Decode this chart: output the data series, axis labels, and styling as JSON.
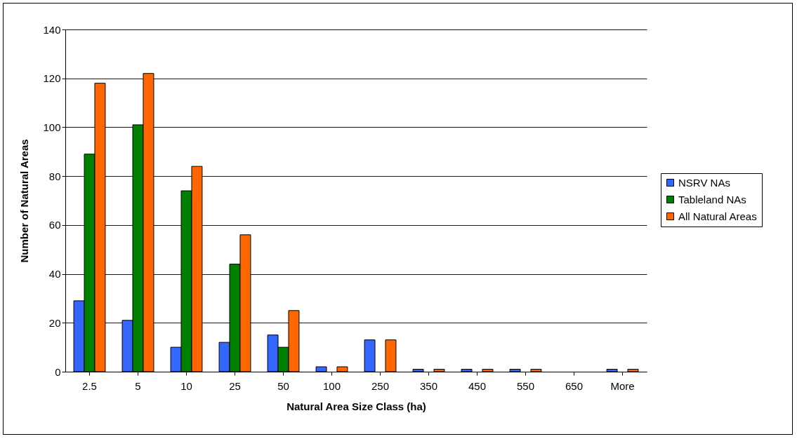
{
  "chart_data": {
    "type": "bar",
    "xlabel": "Natural Area Size Class (ha)",
    "ylabel": "Number of Natural Areas",
    "categories": [
      "2.5",
      "5",
      "10",
      "25",
      "50",
      "100",
      "250",
      "350",
      "450",
      "550",
      "650",
      "More"
    ],
    "series": [
      {
        "name": "NSRV NAs",
        "color": "#3366ff",
        "values": [
          29,
          21,
          10,
          12,
          15,
          2,
          13,
          1,
          1,
          1,
          0,
          1
        ]
      },
      {
        "name": "Tableland NAs",
        "color": "#008000",
        "values": [
          89,
          101,
          74,
          44,
          10,
          0,
          0,
          0,
          0,
          0,
          0,
          0
        ]
      },
      {
        "name": "All Natural Areas",
        "color": "#ff6600",
        "values": [
          118,
          122,
          84,
          56,
          25,
          2,
          13,
          1,
          1,
          1,
          0,
          1
        ]
      }
    ],
    "ylim": [
      0,
      140
    ],
    "yticks": [
      0,
      20,
      40,
      60,
      80,
      100,
      120,
      140
    ],
    "grid": "y",
    "legend": "right"
  }
}
